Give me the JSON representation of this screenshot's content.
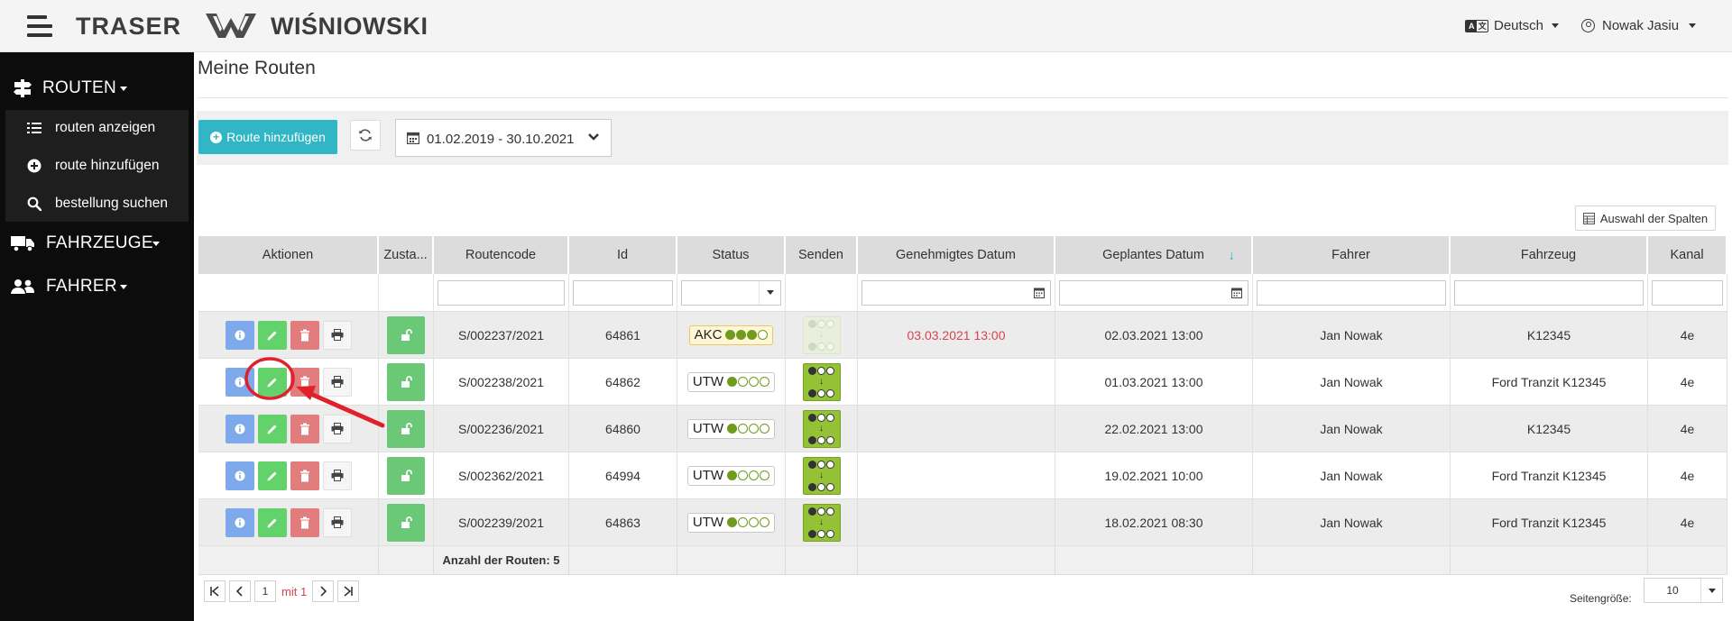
{
  "header": {
    "brand_left": "TRASER",
    "brand_right": "WIŚNIOWSKI",
    "language": "Deutsch",
    "language_icon_a": "A",
    "language_icon_b": "文",
    "user": "Nowak Jasiu"
  },
  "sidebar": {
    "routes": "ROUTEN",
    "routes_show": "routen anzeigen",
    "route_add": "route hinzufügen",
    "order_search": "bestellung suchen",
    "vehicles": "FAHRZEUGE",
    "drivers": "FAHRER"
  },
  "page": {
    "title": "Meine Routen",
    "add_button": "Route hinzufügen",
    "date_range": "01.02.2019 - 30.10.2021",
    "columns_button": "Auswahl der Spalten"
  },
  "table": {
    "headers": {
      "actions": "Aktionen",
      "state": "Zusta...",
      "route_code": "Routencode",
      "id": "Id",
      "status": "Status",
      "send": "Senden",
      "approved_date": "Genehmigtes Datum",
      "planned_date": "Geplantes Datum",
      "driver": "Fahrer",
      "vehicle": "Fahrzeug",
      "channel": "Kanal"
    },
    "sort_indicator": "↓",
    "rows": [
      {
        "code": "S/002237/2021",
        "id": "64861",
        "status": "AKC",
        "status_level": 3,
        "send_active": false,
        "approved": "03.03.2021 13:00",
        "planned": "02.03.2021 13:00",
        "driver": "Jan Nowak",
        "vehicle": "K12345",
        "channel": "4e"
      },
      {
        "code": "S/002238/2021",
        "id": "64862",
        "status": "UTW",
        "status_level": 1,
        "send_active": true,
        "approved": "",
        "planned": "01.03.2021 13:00",
        "driver": "Jan Nowak",
        "vehicle": "Ford Tranzit K12345",
        "channel": "4e"
      },
      {
        "code": "S/002236/2021",
        "id": "64860",
        "status": "UTW",
        "status_level": 1,
        "send_active": true,
        "approved": "",
        "planned": "22.02.2021 13:00",
        "driver": "Jan Nowak",
        "vehicle": "K12345",
        "channel": "4e"
      },
      {
        "code": "S/002362/2021",
        "id": "64994",
        "status": "UTW",
        "status_level": 1,
        "send_active": true,
        "approved": "",
        "planned": "19.02.2021 10:00",
        "driver": "Jan Nowak",
        "vehicle": "Ford Tranzit K12345",
        "channel": "4e"
      },
      {
        "code": "S/002239/2021",
        "id": "64863",
        "status": "UTW",
        "status_level": 1,
        "send_active": true,
        "approved": "",
        "planned": "18.02.2021 08:30",
        "driver": "Jan Nowak",
        "vehicle": "Ford Tranzit K12345",
        "channel": "4e"
      }
    ],
    "footer": "Anzahl der Routen: 5"
  },
  "pager": {
    "page": "1",
    "of": "mit 1",
    "size_label": "Seitengröße:",
    "size_value": "10"
  },
  "colors": {
    "accent": "#31b6c6",
    "edit": "#63d26a",
    "delete": "#e27d7d",
    "info": "#7ea9ea",
    "approved_date": "#d9434b",
    "annotation": "#e0202a"
  }
}
